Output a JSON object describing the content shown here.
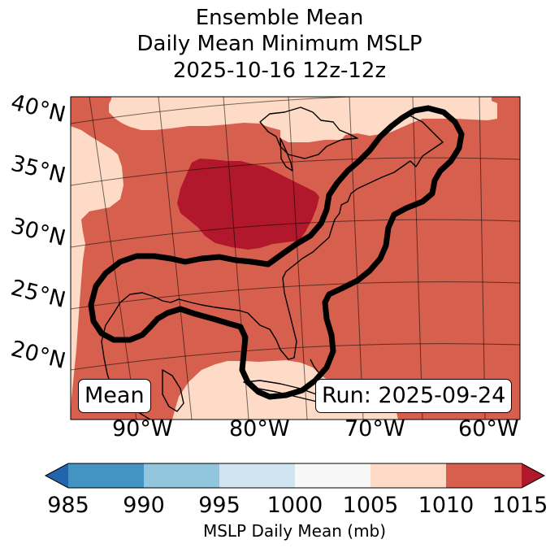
{
  "title": {
    "line1": "Ensemble Mean",
    "line2": "Daily Mean Minimum MSLP",
    "line3": "2025-10-16 12z-12z"
  },
  "map": {
    "lat_labels": [
      "40°N",
      "35°N",
      "30°N",
      "25°N",
      "20°N"
    ],
    "lon_labels": [
      "90°W",
      "80°W",
      "70°W",
      "60°W"
    ],
    "legend_left": "Mean",
    "legend_right": "Run: 2025-09-24",
    "fill_classes_present": [
      "1005-1010",
      "1010-1015",
      ">1015"
    ]
  },
  "colorbar": {
    "ticks": [
      "985",
      "990",
      "995",
      "1000",
      "1005",
      "1010",
      "1015"
    ],
    "label": "MSLP Daily Mean (mb)",
    "colors": [
      "#2166ac",
      "#4393c3",
      "#92c5de",
      "#d1e5f0",
      "#f7f7f7",
      "#fddbc7",
      "#d6604d",
      "#b2182b"
    ]
  }
}
